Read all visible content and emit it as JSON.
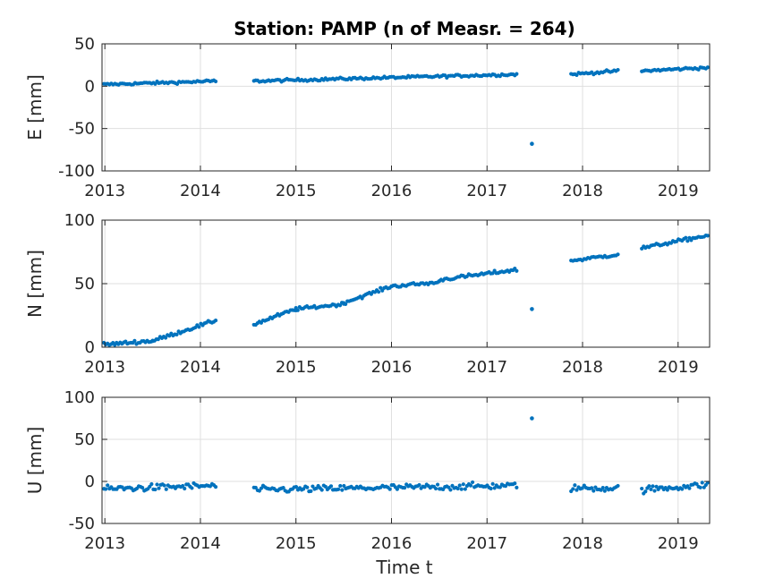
{
  "chart_data": {
    "type": "scatter",
    "title": "Station: PAMP (n of Measr. = 264)",
    "xlabel": "Time t",
    "xlim": [
      2012.97,
      2019.33
    ],
    "xticks": [
      "2013",
      "2014",
      "2015",
      "2016",
      "2017",
      "2018",
      "2019"
    ],
    "grid": true,
    "marker_color": "#0072BD",
    "panels": [
      {
        "ylabel": "E [mm]",
        "ylim": [
          -100,
          50
        ],
        "yticks": [
          "-100",
          "-50",
          "0",
          "50"
        ],
        "outliers": [
          [
            2017.47,
            -68
          ]
        ],
        "segments": [
          {
            "from": 2012.99,
            "to": 2014.16,
            "start": 2,
            "end": 6,
            "noise": 1.4
          },
          {
            "from": 2014.56,
            "to": 2017.31,
            "start": 6,
            "end": 14,
            "noise": 1.4
          },
          {
            "from": 2017.88,
            "to": 2018.37,
            "start": 14,
            "end": 18,
            "noise": 1.4
          },
          {
            "from": 2018.62,
            "to": 2019.31,
            "start": 18,
            "end": 22,
            "noise": 1.4
          }
        ]
      },
      {
        "ylabel": "N [mm]",
        "ylim": [
          0,
          100
        ],
        "yticks": [
          "0",
          "50",
          "100"
        ],
        "outliers": [
          [
            2017.47,
            30
          ]
        ],
        "segments": [
          {
            "from": 2012.99,
            "to": 2013.5,
            "start": 2,
            "end": 5,
            "noise": 1.3
          },
          {
            "from": 2013.5,
            "to": 2014.16,
            "start": 5,
            "end": 21,
            "noise": 1.2
          },
          {
            "from": 2014.56,
            "to": 2015.0,
            "start": 18,
            "end": 30,
            "noise": 1.2
          },
          {
            "from": 2015.0,
            "to": 2015.5,
            "start": 30,
            "end": 34,
            "noise": 1.2
          },
          {
            "from": 2015.5,
            "to": 2016.0,
            "start": 35,
            "end": 48,
            "noise": 1.2
          },
          {
            "from": 2016.0,
            "to": 2016.5,
            "start": 48,
            "end": 51,
            "noise": 1.2
          },
          {
            "from": 2016.5,
            "to": 2017.31,
            "start": 53,
            "end": 61,
            "noise": 1.2
          },
          {
            "from": 2017.88,
            "to": 2018.37,
            "start": 68,
            "end": 73,
            "noise": 1.2
          },
          {
            "from": 2018.62,
            "to": 2019.31,
            "start": 78,
            "end": 88,
            "noise": 1.2
          }
        ]
      },
      {
        "ylabel": "U [mm]",
        "ylim": [
          -50,
          100
        ],
        "yticks": [
          "-50",
          "0",
          "50",
          "100"
        ],
        "outliers": [
          [
            2017.47,
            75
          ]
        ],
        "segments": [
          {
            "from": 2012.99,
            "to": 2014.16,
            "start": -9,
            "end": -5,
            "noise": 3.5
          },
          {
            "from": 2014.56,
            "to": 2017.31,
            "start": -10,
            "end": -5,
            "noise": 3.5
          },
          {
            "from": 2017.88,
            "to": 2018.37,
            "start": -8,
            "end": -8,
            "noise": 3.5
          },
          {
            "from": 2018.62,
            "to": 2019.31,
            "start": -10,
            "end": -4,
            "noise": 3.5
          }
        ]
      }
    ]
  }
}
